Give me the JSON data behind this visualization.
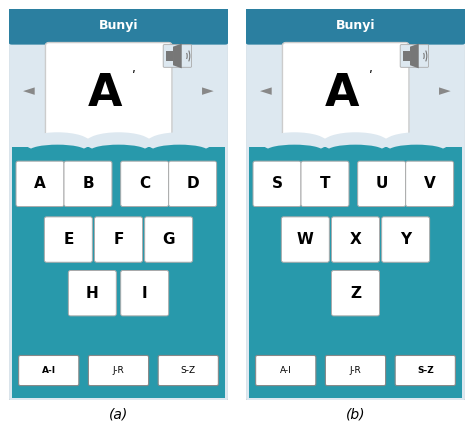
{
  "title": "Bunyi",
  "title_bg": "#2b7fa0",
  "title_color": "white",
  "app_bg": "#dde8f0",
  "teal_bg": "#2899ab",
  "panel_a_label": "(a)",
  "panel_b_label": "(b)",
  "letters_a_rows": [
    {
      "letters": [
        "A",
        "B",
        "C",
        "D"
      ],
      "row": 0
    },
    {
      "letters": [
        "E",
        "F",
        "G"
      ],
      "row": 1
    },
    {
      "letters": [
        "H",
        "I"
      ],
      "row": 2
    }
  ],
  "letters_b_rows": [
    {
      "letters": [
        "S",
        "T",
        "U",
        "V"
      ],
      "row": 0
    },
    {
      "letters": [
        "W",
        "X",
        "Y"
      ],
      "row": 1
    },
    {
      "letters": [
        "Z"
      ],
      "row": 2
    }
  ],
  "tabs": [
    "A-I",
    "J-R",
    "S-Z"
  ],
  "tab_active_a": 0,
  "tab_active_b": 2,
  "nav_arrow_color": "#888888",
  "letter_box_bg": "white",
  "letter_color": "black"
}
